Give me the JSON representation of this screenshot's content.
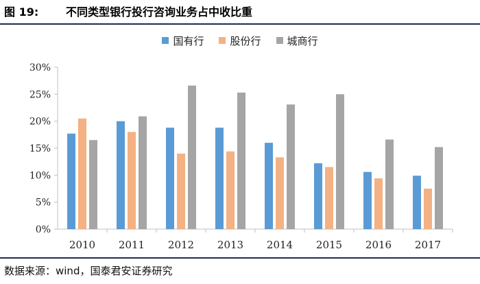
{
  "figure": {
    "label": "图 19:",
    "title": "不同类型银行投行咨询业务占中收比重",
    "source": "数据来源：wind，国泰君安证券研究"
  },
  "chart_data": {
    "type": "bar",
    "categories": [
      "2010",
      "2011",
      "2012",
      "2013",
      "2014",
      "2015",
      "2016",
      "2017"
    ],
    "series": [
      {
        "name": "国有行",
        "color": "#5b9bd5",
        "values": [
          17.7,
          20.0,
          18.8,
          18.8,
          16.0,
          12.2,
          10.6,
          9.9
        ]
      },
      {
        "name": "股份行",
        "color": "#f4b183",
        "values": [
          20.5,
          18.0,
          14.0,
          14.4,
          13.3,
          11.5,
          9.4,
          7.5
        ]
      },
      {
        "name": "城商行",
        "color": "#a5a5a5",
        "values": [
          16.5,
          20.9,
          26.6,
          25.3,
          23.1,
          25.0,
          16.6,
          15.2
        ]
      }
    ],
    "ylim": [
      0,
      30
    ],
    "yticks": [
      0,
      5,
      10,
      15,
      20,
      25,
      30
    ],
    "ytick_labels": [
      "0%",
      "5%",
      "10%",
      "15%",
      "20%",
      "25%",
      "30%"
    ],
    "grid": false,
    "legend_position": "top-center"
  }
}
